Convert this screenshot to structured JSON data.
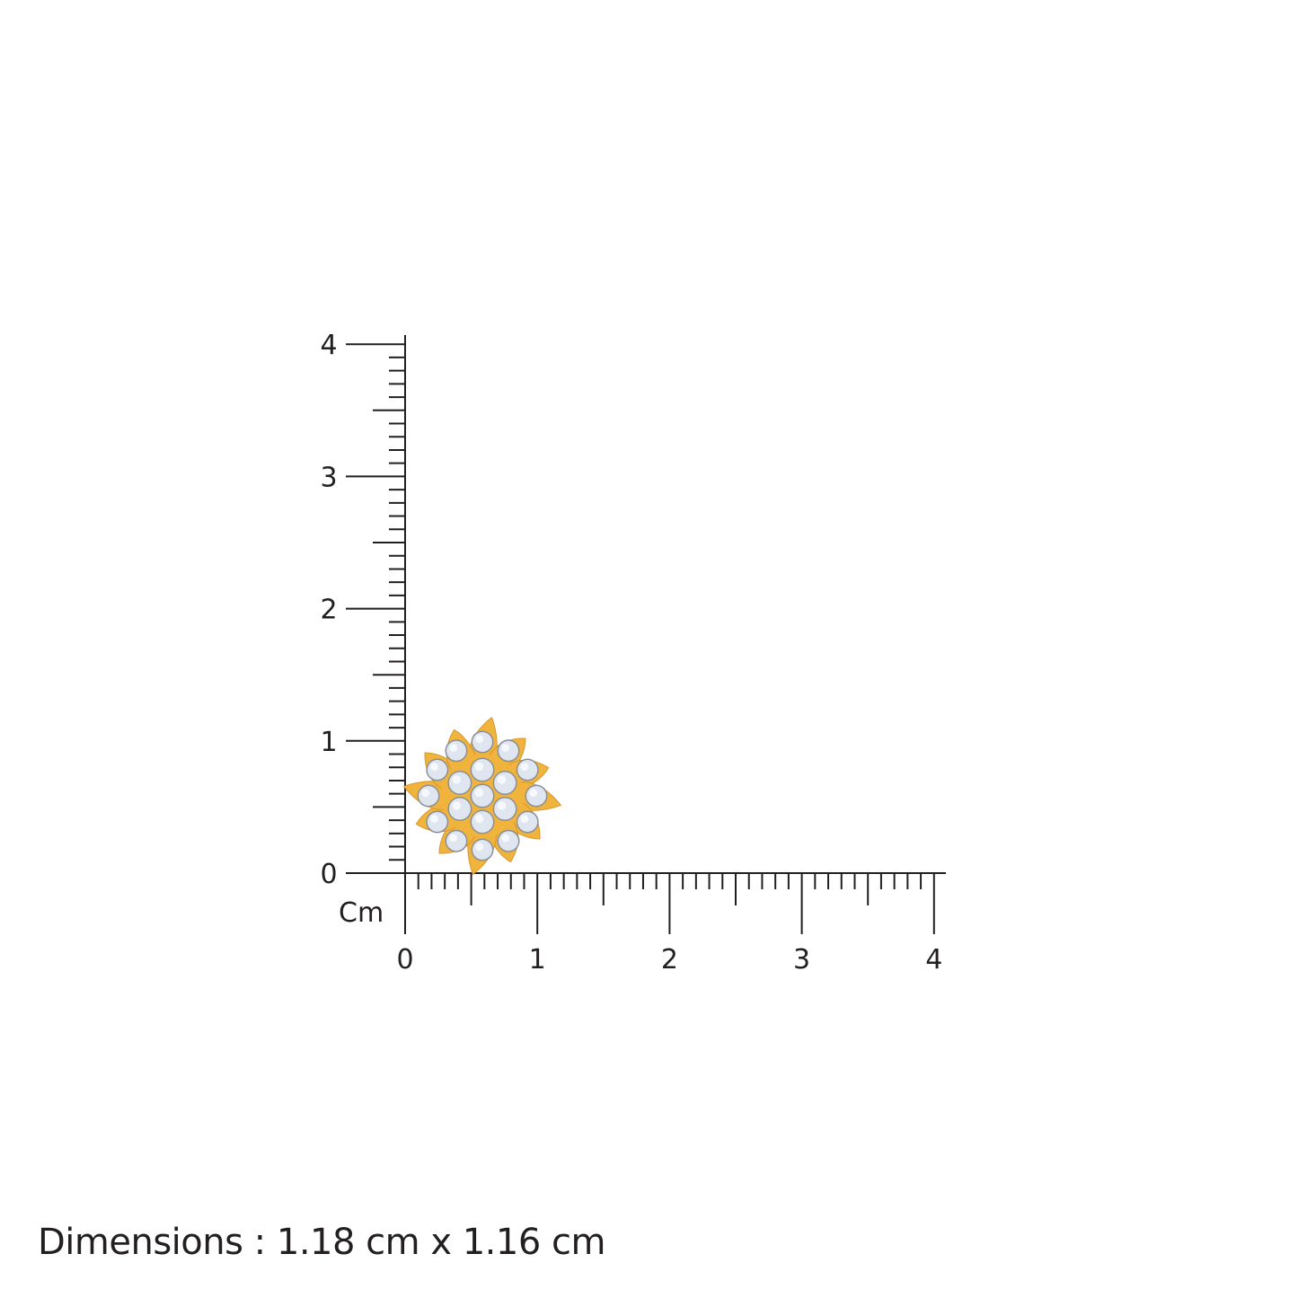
{
  "ruler": {
    "unit_label": "Cm",
    "x_ticks": [
      "0",
      "1",
      "2",
      "3",
      "4"
    ],
    "y_ticks": [
      "0",
      "1",
      "2",
      "3",
      "4"
    ],
    "range_cm": [
      0,
      4
    ],
    "minor_step_cm": 0.1,
    "color": "#231f20"
  },
  "product": {
    "icon": "flower-diamond-stud-earring",
    "metal_color": "#f0b43c",
    "stone_color": "#dfe6f0",
    "width_cm": 1.18,
    "height_cm": 1.16
  },
  "dimensions_text": "Dimensions : 1.18 cm x 1.16 cm"
}
